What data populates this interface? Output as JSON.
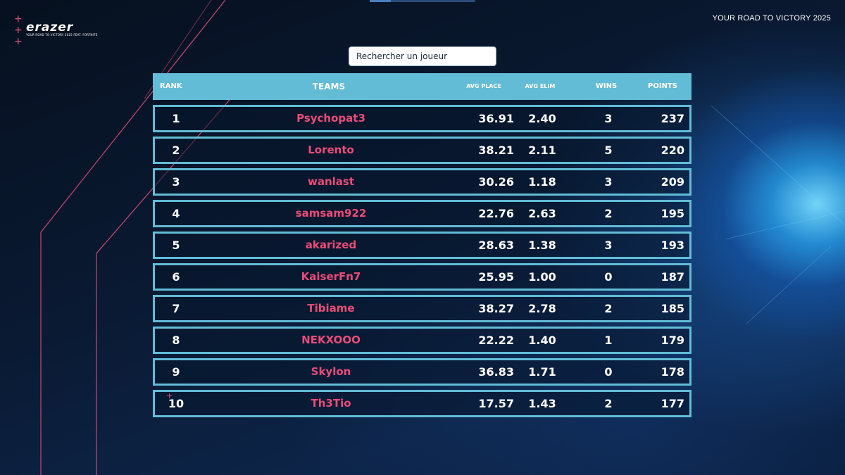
{
  "header": {
    "logo_text": "erazer",
    "logo_tagline": "YOUR ROAD TO VICTORY 2025 FEAT. FORTNITE",
    "top_right_text": "YOUR ROAD TO VICTORY 2025"
  },
  "search": {
    "placeholder": "Rechercher un joueur"
  },
  "colors": {
    "header_bg": "#62bcd6",
    "row_border": "#62bcd6",
    "team_name": "#e94c78",
    "accent_plus": "#e8547a"
  },
  "table": {
    "columns": {
      "rank": "RANK",
      "teams": "TEAMS",
      "avg_place": "AVG PLACE",
      "avg_elim": "AVG ELIM",
      "wins": "WINS",
      "points": "POINTS"
    },
    "rows": [
      {
        "rank": "1",
        "team": "Psychopat3",
        "avg_place": "36.91",
        "avg_elim": "2.40",
        "wins": "3",
        "points": "237"
      },
      {
        "rank": "2",
        "team": "Lorento",
        "avg_place": "38.21",
        "avg_elim": "2.11",
        "wins": "5",
        "points": "220"
      },
      {
        "rank": "3",
        "team": "wanlast",
        "avg_place": "30.26",
        "avg_elim": "1.18",
        "wins": "3",
        "points": "209"
      },
      {
        "rank": "4",
        "team": "samsam922",
        "avg_place": "22.76",
        "avg_elim": "2.63",
        "wins": "2",
        "points": "195"
      },
      {
        "rank": "5",
        "team": "akarized",
        "avg_place": "28.63",
        "avg_elim": "1.38",
        "wins": "3",
        "points": "193"
      },
      {
        "rank": "6",
        "team": "KaiserFn7",
        "avg_place": "25.95",
        "avg_elim": "1.00",
        "wins": "0",
        "points": "187"
      },
      {
        "rank": "7",
        "team": "Tibiame",
        "avg_place": "38.27",
        "avg_elim": "2.78",
        "wins": "2",
        "points": "185"
      },
      {
        "rank": "8",
        "team": "NEKXOOO",
        "avg_place": "22.22",
        "avg_elim": "1.40",
        "wins": "1",
        "points": "179"
      },
      {
        "rank": "9",
        "team": "Skylon",
        "avg_place": "36.83",
        "avg_elim": "1.71",
        "wins": "0",
        "points": "178"
      },
      {
        "rank": "10",
        "team": "Th3Tio",
        "avg_place": "17.57",
        "avg_elim": "1.43",
        "wins": "2",
        "points": "177"
      }
    ]
  }
}
